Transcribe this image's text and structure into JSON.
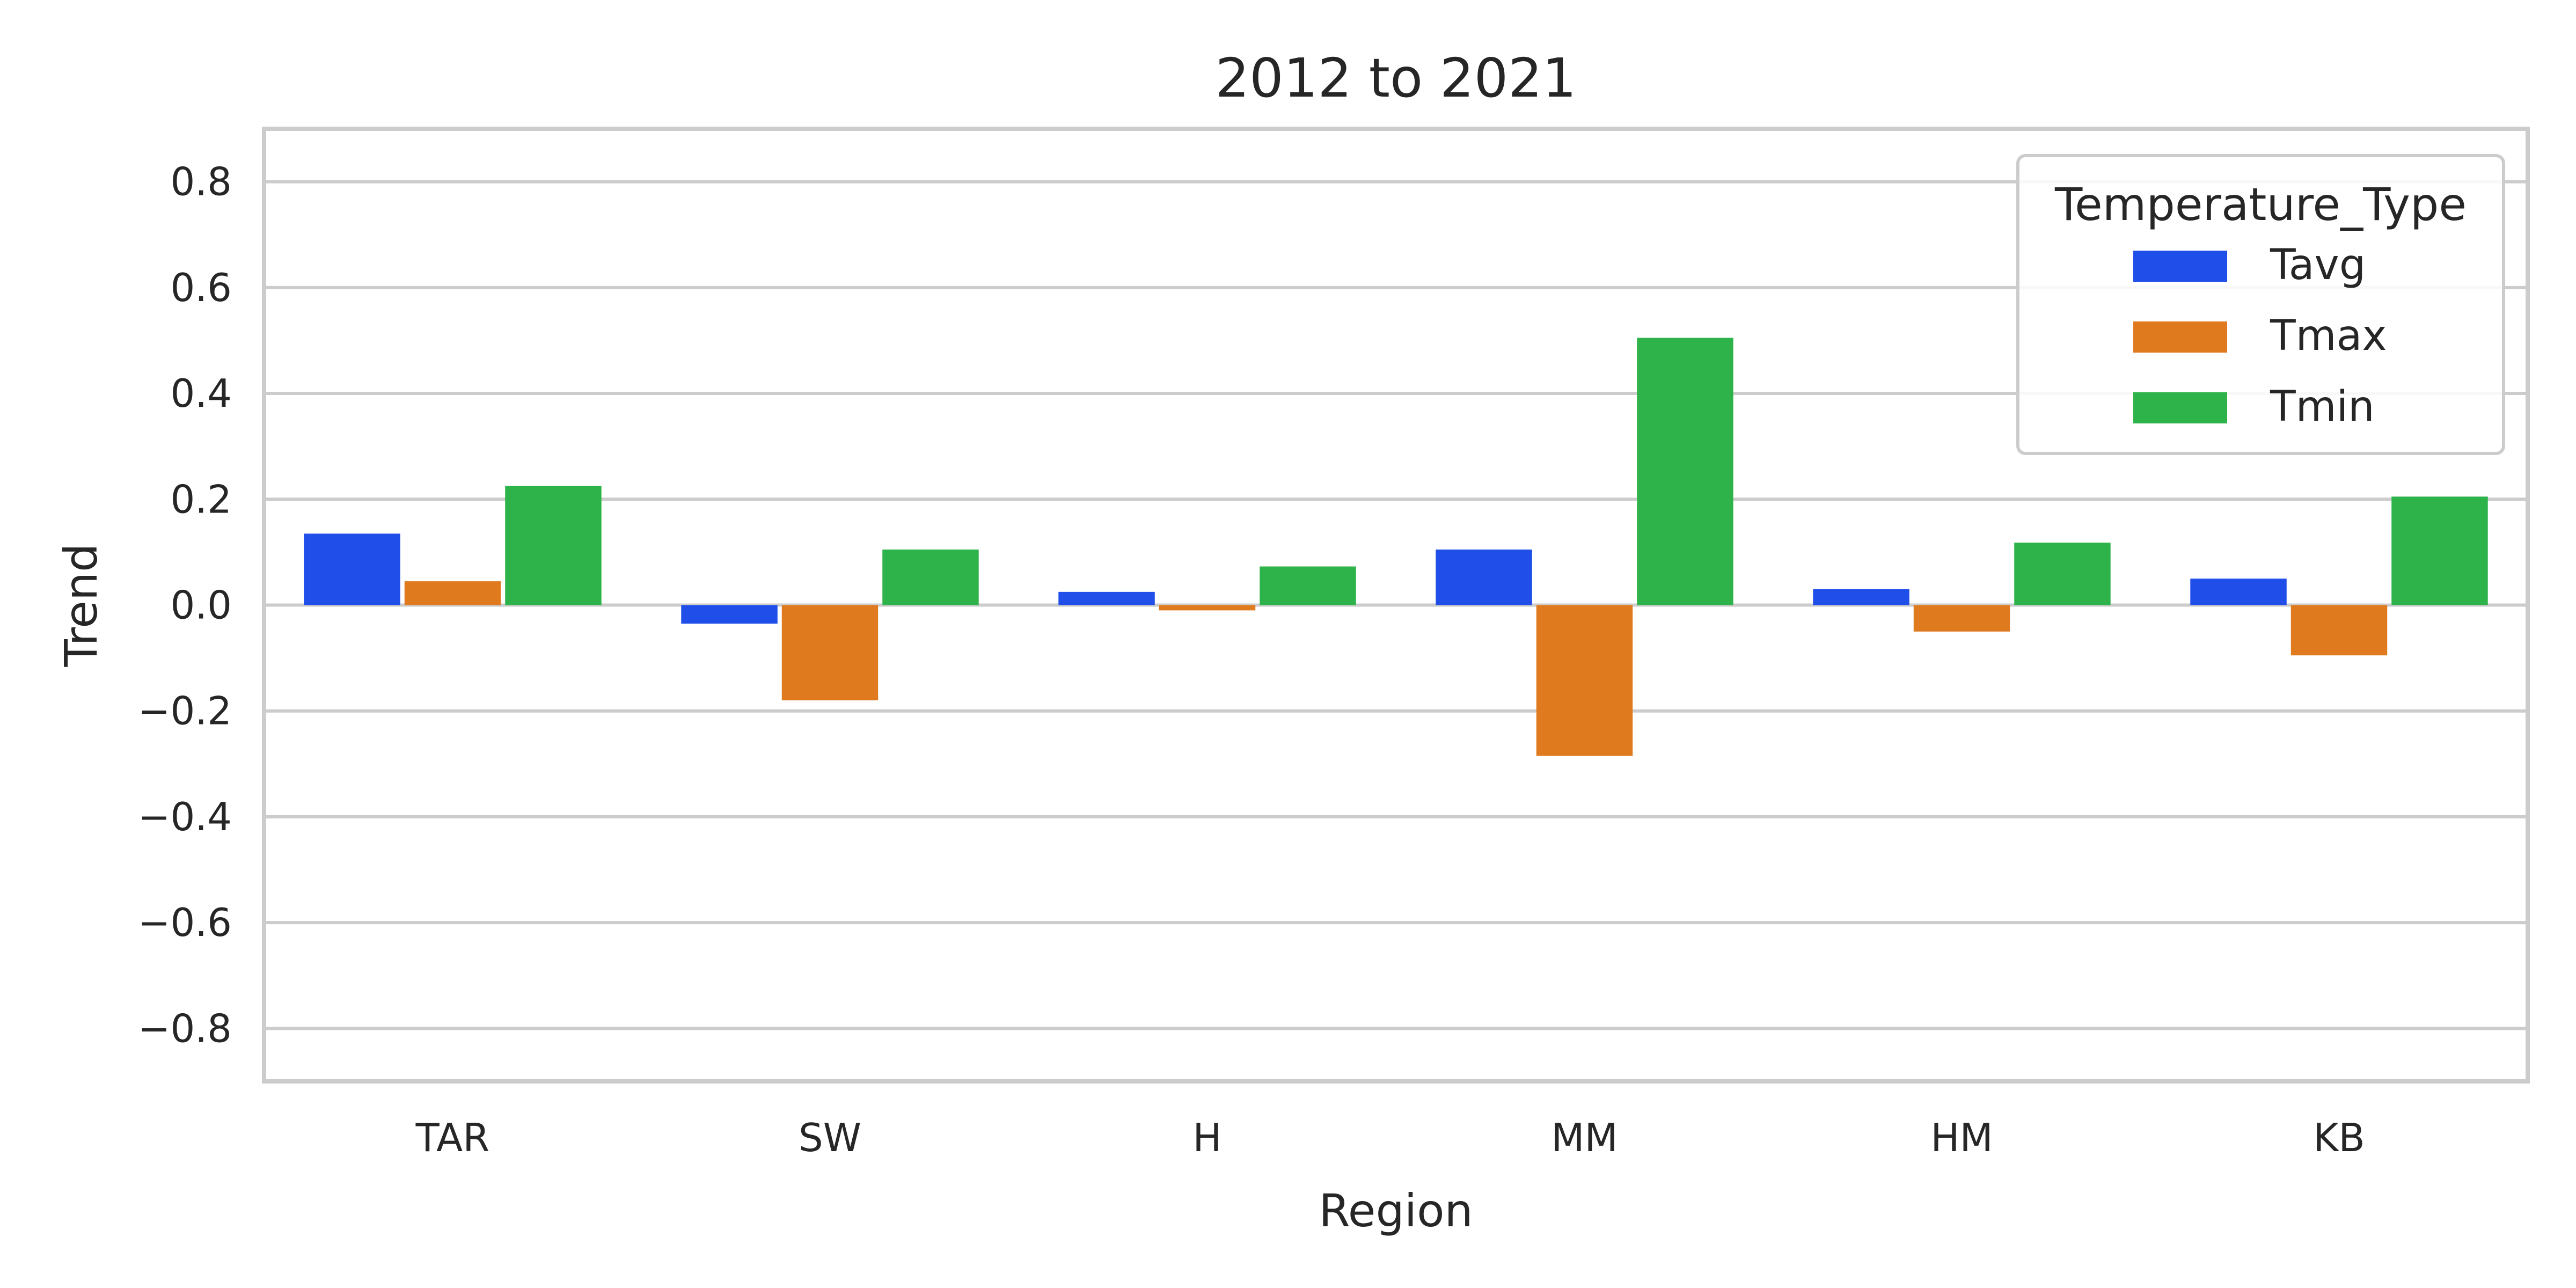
{
  "chart_data": {
    "type": "bar",
    "title": "2012 to 2021",
    "xlabel": "Region",
    "ylabel": "Trend",
    "categories": [
      "TAR",
      "SW",
      "H",
      "MM",
      "HM",
      "KB"
    ],
    "series": [
      {
        "name": "Tavg",
        "color": "#1f4ee8",
        "values": [
          0.135,
          -0.035,
          0.025,
          0.105,
          0.03,
          0.05
        ]
      },
      {
        "name": "Tmax",
        "color": "#e07a1e",
        "values": [
          0.045,
          -0.18,
          -0.01,
          -0.285,
          -0.05,
          -0.095
        ]
      },
      {
        "name": "Tmin",
        "color": "#2db34a",
        "values": [
          0.225,
          0.105,
          0.073,
          0.505,
          0.118,
          0.205
        ]
      }
    ],
    "ylim": [
      -0.9,
      0.9
    ],
    "yticks": [
      -0.8,
      -0.6,
      -0.4,
      -0.2,
      0.0,
      0.2,
      0.4,
      0.6,
      0.8
    ],
    "ytick_labels": [
      "−0.8",
      "−0.6",
      "−0.4",
      "−0.2",
      "0.0",
      "0.2",
      "0.4",
      "0.6",
      "0.8"
    ],
    "grid": true,
    "legend": {
      "title": "Temperature_Type",
      "position": "top-right"
    }
  }
}
